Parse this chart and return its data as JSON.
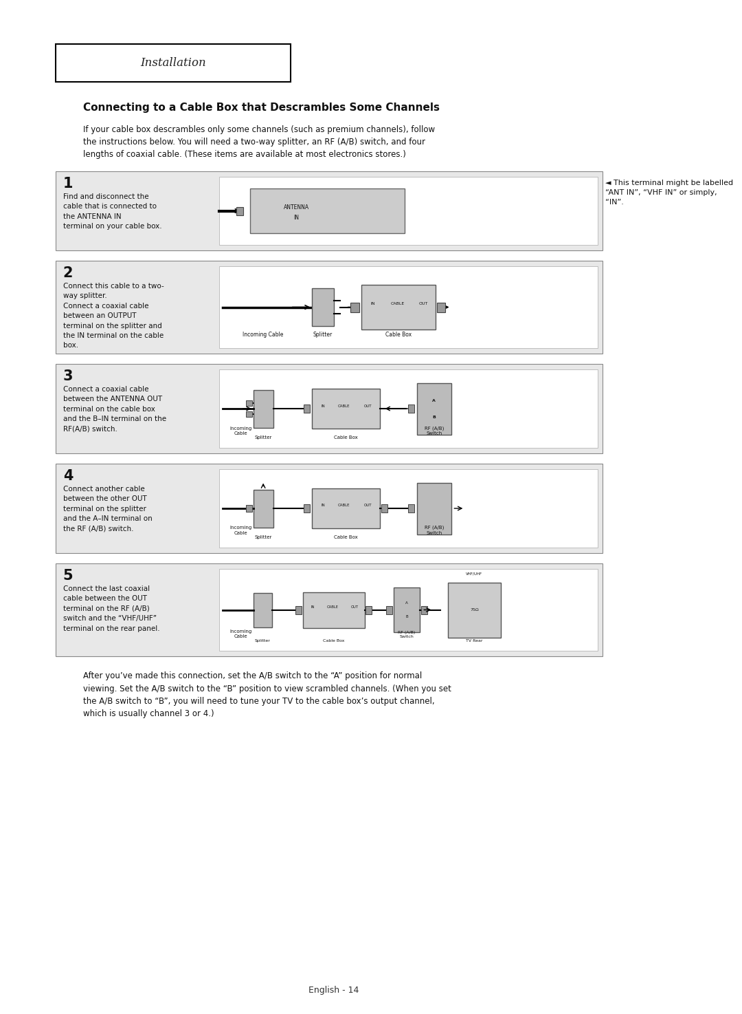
{
  "page_bg": "#ffffff",
  "header_text": "Installation",
  "header_font": "serif",
  "title": "Connecting to a Cable Box that Descrambles Some Channels",
  "intro_text": "If your cable box descrambles only some channels (such as premium channels), follow\nthe instructions below. You will need a two-way splitter, an RF (A/B) switch, and four\nlengths of coaxial cable. (These items are available at most electronics stores.)",
  "steps": [
    {
      "num": "1",
      "text": "Find and disconnect the\ncable that is connected to\nthe ANTENNA IN\nterminal on your cable box.",
      "note": "◄ This terminal might be labelled\n“ANT IN”, “VHF IN” or simply,\n“IN”."
    },
    {
      "num": "2",
      "text": "Connect this cable to a two-\nway splitter.\nConnect a coaxial cable\nbetween an OUTPUT\nterminal on the splitter and\nthe IN terminal on the cable\nbox.",
      "note": ""
    },
    {
      "num": "3",
      "text": "Connect a coaxial cable\nbetween the ANTENNA OUT\nterminal on the cable box\nand the B–IN terminal on the\nRF(A/B) switch.",
      "note": ""
    },
    {
      "num": "4",
      "text": "Connect another cable\nbetween the other OUT\nterminal on the splitter\nand the A–IN terminal on\nthe RF (A/B) switch.",
      "note": ""
    },
    {
      "num": "5",
      "text": "Connect the last coaxial\ncable between the OUT\nterminal on the RF (A/B)\nswitch and the “VHF/UHF”\nterminal on the rear panel.",
      "note": ""
    }
  ],
  "footer_note": "After you’ve made this connection, set the A/B switch to the “A” position for normal\nviewing. Set the A/B switch to the “B” position to view scrambled channels. (When you set\nthe A/B switch to “B”, you will need to tune your TV to the cable box’s output channel,\nwhich is usually channel 3 or 4.)",
  "page_num": "English - 14",
  "box_bg": "#e8e8e8",
  "diagram_bg": "#f0f0f0",
  "step_box_border": "#aaaaaa"
}
